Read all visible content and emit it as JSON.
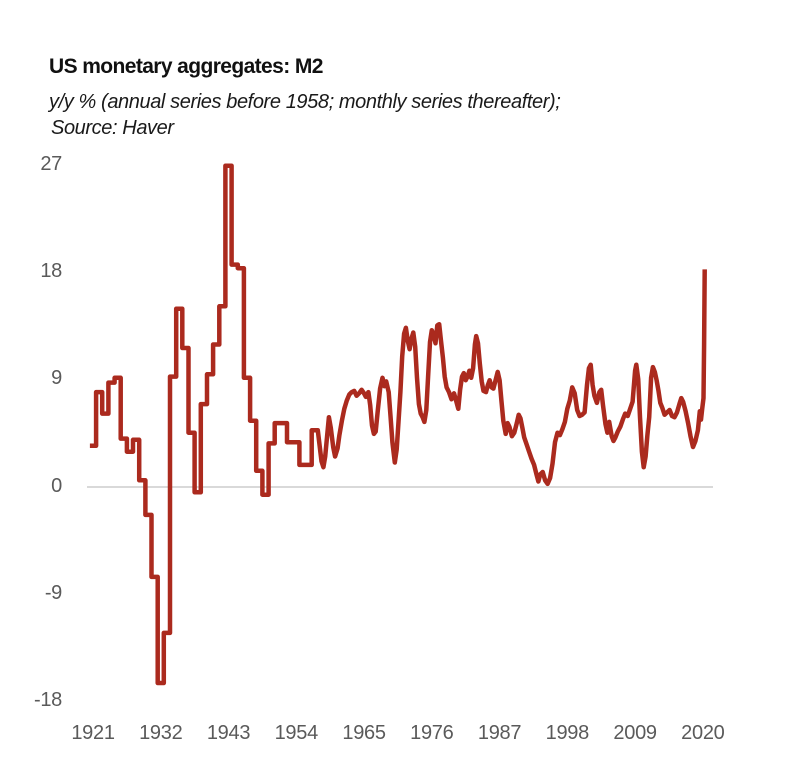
{
  "header": {
    "title": "US monetary aggregates: M2",
    "subtitle": "y/y % (annual series before 1958; monthly series thereafter);",
    "source": "Source: Haver"
  },
  "chart_data": {
    "type": "line",
    "title": "US monetary aggregates: M2",
    "ylabel": "y/y %",
    "legend": "none",
    "grid": "horizontal zero-line only",
    "xlim": [
      1920.5,
      2020.6
    ],
    "ylim": [
      -18,
      27
    ],
    "x_ticks": [
      1921,
      1932,
      1943,
      1954,
      1965,
      1976,
      1987,
      1998,
      2009,
      2020
    ],
    "y_ticks": [
      27,
      18,
      9,
      0,
      -9,
      -18
    ],
    "colors": {
      "line": "#AB2A1E",
      "zero_line": "#D9D9D9",
      "tick_label": "#5A5A5A",
      "text": "#111111"
    },
    "series": [
      {
        "name": "M2 y/y % — annual series 1921-1957 (drawn as yearly steps)",
        "style": "step",
        "points": [
          [
            1921,
            3.5
          ],
          [
            1922,
            8.0
          ],
          [
            1923,
            6.2
          ],
          [
            1924,
            8.8
          ],
          [
            1925,
            9.2
          ],
          [
            1926,
            4.1
          ],
          [
            1927,
            3.0
          ],
          [
            1928,
            4.0
          ],
          [
            1929,
            0.6
          ],
          [
            1930,
            -2.3
          ],
          [
            1931,
            -7.5
          ],
          [
            1932,
            -16.4
          ],
          [
            1933,
            -12.2
          ],
          [
            1934,
            9.3
          ],
          [
            1935,
            15.0
          ],
          [
            1936,
            11.7
          ],
          [
            1937,
            4.6
          ],
          [
            1938,
            -0.4
          ],
          [
            1939,
            7.0
          ],
          [
            1940,
            9.5
          ],
          [
            1941,
            12.0
          ],
          [
            1942,
            15.2
          ],
          [
            1943,
            27.0
          ],
          [
            1944,
            18.7
          ],
          [
            1945,
            18.4
          ],
          [
            1946,
            9.2
          ],
          [
            1947,
            5.6
          ],
          [
            1948,
            1.4
          ],
          [
            1949,
            -0.6
          ],
          [
            1950,
            3.7
          ],
          [
            1951,
            5.4
          ],
          [
            1952,
            5.4
          ],
          [
            1953,
            3.8
          ],
          [
            1954,
            3.8
          ],
          [
            1955,
            1.9
          ],
          [
            1956,
            1.9
          ],
          [
            1957,
            4.8
          ]
        ]
      },
      {
        "name": "M2 y/y % — monthly series 1958-2020",
        "style": "line",
        "points": [
          [
            1958.1,
            2.2
          ],
          [
            1958.4,
            1.7
          ],
          [
            1958.7,
            2.6
          ],
          [
            1959.0,
            4.3
          ],
          [
            1959.3,
            5.9
          ],
          [
            1959.6,
            5.0
          ],
          [
            1960.0,
            3.4
          ],
          [
            1960.3,
            2.6
          ],
          [
            1960.7,
            3.3
          ],
          [
            1961.0,
            4.4
          ],
          [
            1961.4,
            5.6
          ],
          [
            1961.8,
            6.6
          ],
          [
            1962.2,
            7.3
          ],
          [
            1962.6,
            7.8
          ],
          [
            1963.0,
            8.0
          ],
          [
            1963.4,
            8.1
          ],
          [
            1963.8,
            7.7
          ],
          [
            1964.2,
            7.9
          ],
          [
            1964.6,
            8.2
          ],
          [
            1965.0,
            7.9
          ],
          [
            1965.3,
            7.6
          ],
          [
            1965.7,
            8.0
          ],
          [
            1966.0,
            6.9
          ],
          [
            1966.3,
            5.2
          ],
          [
            1966.6,
            4.5
          ],
          [
            1966.9,
            4.7
          ],
          [
            1967.2,
            6.3
          ],
          [
            1967.6,
            8.3
          ],
          [
            1968.0,
            9.2
          ],
          [
            1968.3,
            8.5
          ],
          [
            1968.6,
            8.9
          ],
          [
            1969.0,
            8.0
          ],
          [
            1969.3,
            6.0
          ],
          [
            1969.6,
            3.8
          ],
          [
            1970.0,
            2.1
          ],
          [
            1970.3,
            3.2
          ],
          [
            1970.6,
            5.5
          ],
          [
            1970.9,
            8.0
          ],
          [
            1971.2,
            11.0
          ],
          [
            1971.5,
            12.9
          ],
          [
            1971.8,
            13.4
          ],
          [
            1972.1,
            12.3
          ],
          [
            1972.4,
            11.6
          ],
          [
            1972.7,
            12.5
          ],
          [
            1973.0,
            13.0
          ],
          [
            1973.3,
            11.8
          ],
          [
            1973.6,
            9.2
          ],
          [
            1973.9,
            7.0
          ],
          [
            1974.2,
            6.2
          ],
          [
            1974.5,
            5.9
          ],
          [
            1974.8,
            5.5
          ],
          [
            1975.1,
            6.5
          ],
          [
            1975.4,
            9.3
          ],
          [
            1975.7,
            12.2
          ],
          [
            1976.0,
            13.2
          ],
          [
            1976.3,
            12.8
          ],
          [
            1976.6,
            12.1
          ],
          [
            1976.9,
            13.6
          ],
          [
            1977.2,
            13.7
          ],
          [
            1977.5,
            12.3
          ],
          [
            1977.8,
            10.9
          ],
          [
            1978.1,
            9.3
          ],
          [
            1978.4,
            8.4
          ],
          [
            1978.8,
            8.0
          ],
          [
            1979.2,
            7.4
          ],
          [
            1979.6,
            7.9
          ],
          [
            1980.0,
            7.2
          ],
          [
            1980.3,
            6.6
          ],
          [
            1980.6,
            8.2
          ],
          [
            1980.9,
            9.3
          ],
          [
            1981.2,
            9.6
          ],
          [
            1981.5,
            9.0
          ],
          [
            1981.8,
            9.3
          ],
          [
            1982.1,
            9.8
          ],
          [
            1982.4,
            9.2
          ],
          [
            1982.7,
            10.0
          ],
          [
            1983.0,
            12.0
          ],
          [
            1983.2,
            12.7
          ],
          [
            1983.5,
            12.1
          ],
          [
            1983.8,
            10.4
          ],
          [
            1984.1,
            8.9
          ],
          [
            1984.4,
            8.1
          ],
          [
            1984.8,
            8.0
          ],
          [
            1985.1,
            8.6
          ],
          [
            1985.4,
            9.0
          ],
          [
            1985.7,
            8.4
          ],
          [
            1986.0,
            8.3
          ],
          [
            1986.4,
            9.1
          ],
          [
            1986.7,
            9.7
          ],
          [
            1987.0,
            9.0
          ],
          [
            1987.3,
            7.3
          ],
          [
            1987.6,
            5.6
          ],
          [
            1988.0,
            4.5
          ],
          [
            1988.3,
            5.4
          ],
          [
            1988.6,
            5.1
          ],
          [
            1989.0,
            4.3
          ],
          [
            1989.4,
            4.6
          ],
          [
            1989.8,
            5.4
          ],
          [
            1990.1,
            6.1
          ],
          [
            1990.4,
            5.8
          ],
          [
            1990.7,
            5.0
          ],
          [
            1991.0,
            4.2
          ],
          [
            1991.4,
            3.6
          ],
          [
            1991.8,
            3.0
          ],
          [
            1992.2,
            2.4
          ],
          [
            1992.6,
            1.9
          ],
          [
            1993.0,
            1.1
          ],
          [
            1993.3,
            0.5
          ],
          [
            1993.6,
            1.1
          ],
          [
            1994.0,
            1.3
          ],
          [
            1994.4,
            0.6
          ],
          [
            1994.8,
            0.3
          ],
          [
            1995.2,
            0.8
          ],
          [
            1995.6,
            2.0
          ],
          [
            1996.0,
            3.8
          ],
          [
            1996.4,
            4.6
          ],
          [
            1996.8,
            4.4
          ],
          [
            1997.2,
            4.9
          ],
          [
            1997.6,
            5.5
          ],
          [
            1998.0,
            6.6
          ],
          [
            1998.4,
            7.3
          ],
          [
            1998.8,
            8.4
          ],
          [
            1999.2,
            7.9
          ],
          [
            1999.6,
            6.5
          ],
          [
            2000.0,
            6.0
          ],
          [
            2000.4,
            6.1
          ],
          [
            2000.8,
            6.3
          ],
          [
            2001.2,
            8.6
          ],
          [
            2001.5,
            10.0
          ],
          [
            2001.8,
            10.3
          ],
          [
            2002.1,
            8.6
          ],
          [
            2002.4,
            7.7
          ],
          [
            2002.8,
            7.1
          ],
          [
            2003.2,
            8.0
          ],
          [
            2003.5,
            8.2
          ],
          [
            2003.8,
            6.9
          ],
          [
            2004.2,
            5.3
          ],
          [
            2004.5,
            4.6
          ],
          [
            2004.8,
            5.5
          ],
          [
            2005.2,
            4.3
          ],
          [
            2005.5,
            3.9
          ],
          [
            2005.8,
            4.2
          ],
          [
            2006.2,
            4.7
          ],
          [
            2006.6,
            5.1
          ],
          [
            2007.0,
            5.7
          ],
          [
            2007.4,
            6.2
          ],
          [
            2007.8,
            6.0
          ],
          [
            2008.2,
            6.6
          ],
          [
            2008.6,
            7.2
          ],
          [
            2009.0,
            9.8
          ],
          [
            2009.2,
            10.3
          ],
          [
            2009.5,
            9.1
          ],
          [
            2009.8,
            5.9
          ],
          [
            2010.1,
            3.0
          ],
          [
            2010.4,
            1.7
          ],
          [
            2010.7,
            2.6
          ],
          [
            2011.0,
            4.4
          ],
          [
            2011.3,
            5.9
          ],
          [
            2011.6,
            9.2
          ],
          [
            2011.9,
            10.1
          ],
          [
            2012.2,
            9.7
          ],
          [
            2012.5,
            9.0
          ],
          [
            2012.8,
            8.1
          ],
          [
            2013.1,
            7.1
          ],
          [
            2013.4,
            6.7
          ],
          [
            2013.8,
            6.1
          ],
          [
            2014.2,
            6.3
          ],
          [
            2014.6,
            6.5
          ],
          [
            2015.0,
            6.0
          ],
          [
            2015.4,
            5.9
          ],
          [
            2015.8,
            6.3
          ],
          [
            2016.2,
            7.0
          ],
          [
            2016.5,
            7.5
          ],
          [
            2016.8,
            7.2
          ],
          [
            2017.2,
            6.4
          ],
          [
            2017.6,
            5.4
          ],
          [
            2018.0,
            4.3
          ],
          [
            2018.4,
            3.4
          ],
          [
            2018.8,
            3.9
          ],
          [
            2019.2,
            4.8
          ],
          [
            2019.5,
            6.4
          ],
          [
            2019.7,
            5.7
          ],
          [
            2019.9,
            6.6
          ],
          [
            2020.1,
            7.5
          ],
          [
            2020.2,
            12.0
          ],
          [
            2020.3,
            18.3
          ]
        ]
      }
    ]
  }
}
